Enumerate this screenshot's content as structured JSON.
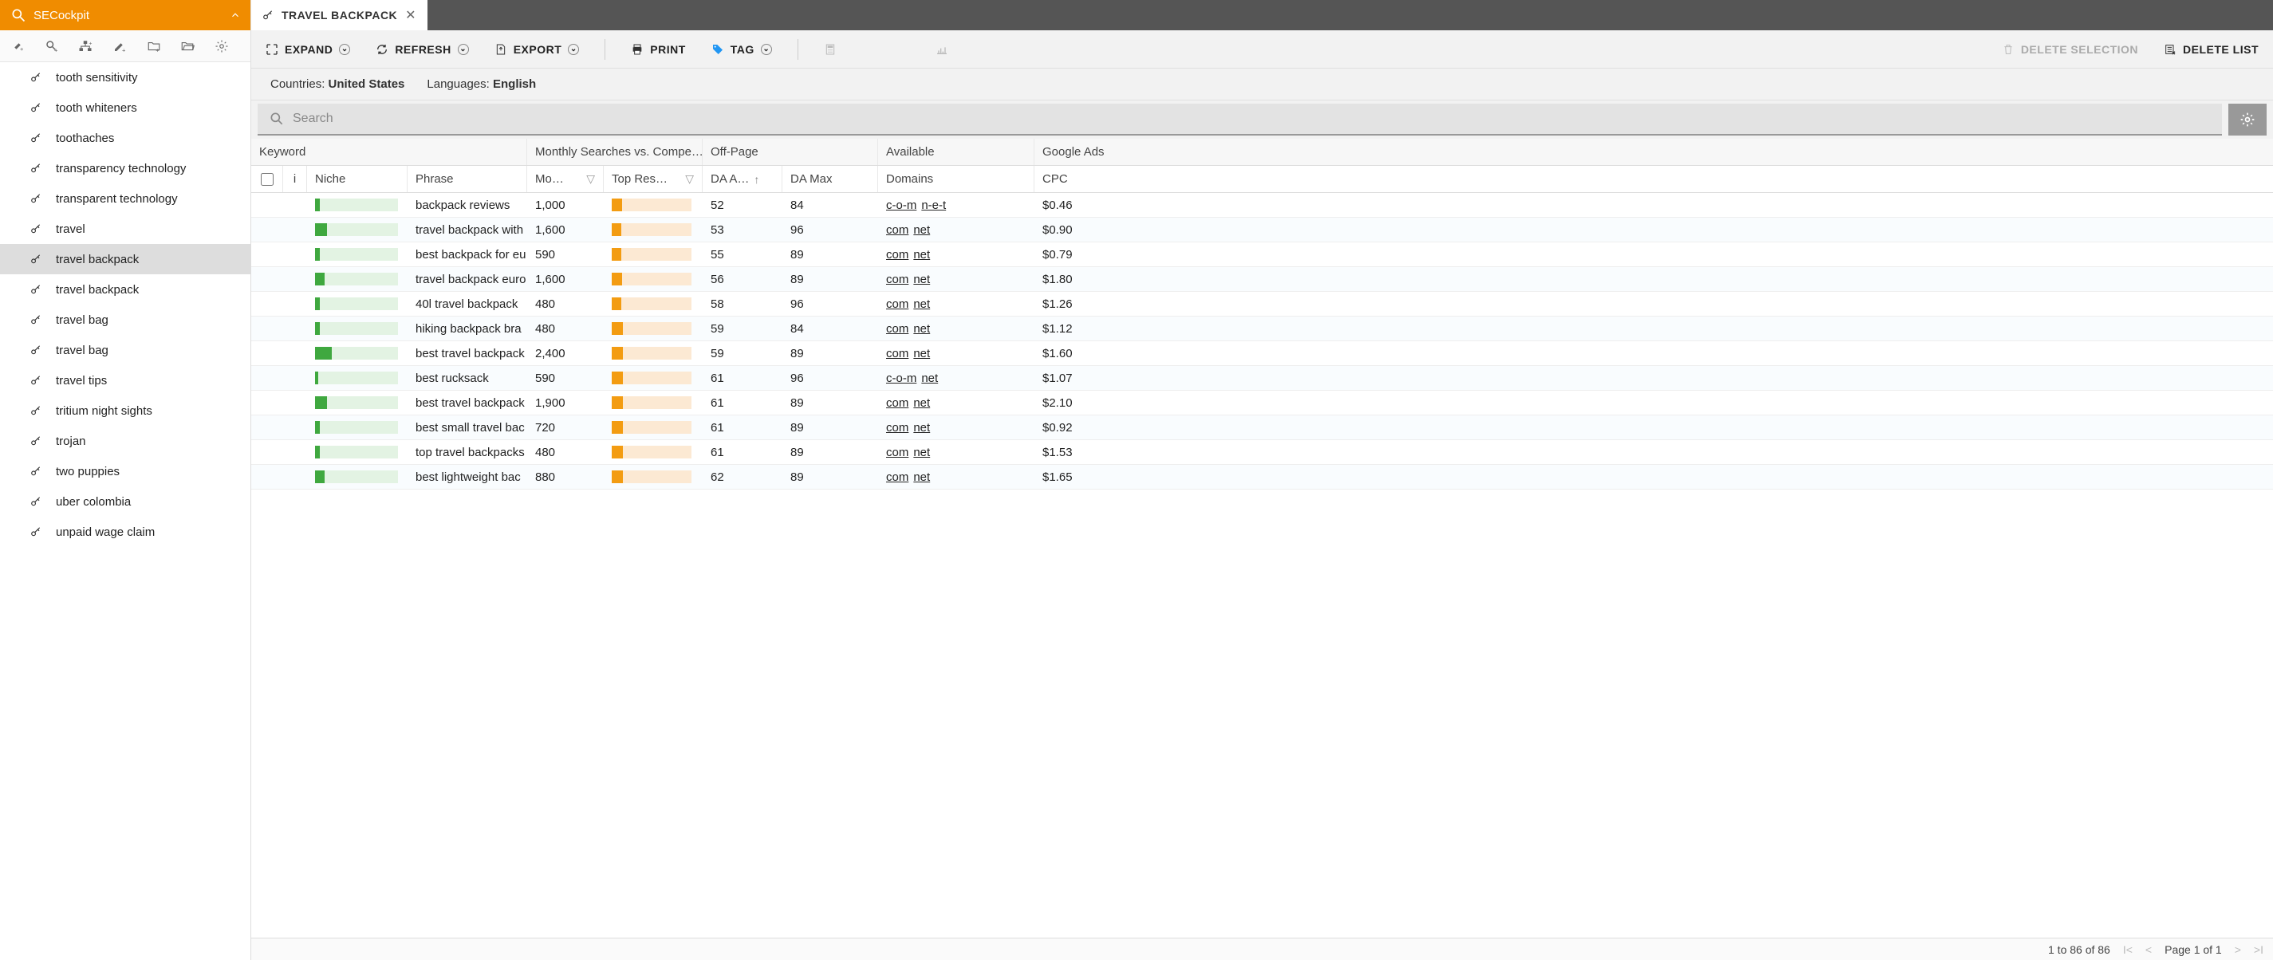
{
  "sidebar": {
    "title": "SECockpit",
    "items": [
      {
        "label": "tooth sensitivity",
        "active": false
      },
      {
        "label": "tooth whiteners",
        "active": false
      },
      {
        "label": "toothaches",
        "active": false
      },
      {
        "label": "transparency technology",
        "active": false
      },
      {
        "label": "transparent technology",
        "active": false
      },
      {
        "label": "travel",
        "active": false
      },
      {
        "label": "travel backpack",
        "active": true
      },
      {
        "label": "travel backpack",
        "active": false
      },
      {
        "label": "travel bag",
        "active": false
      },
      {
        "label": "travel bag",
        "active": false
      },
      {
        "label": "travel tips",
        "active": false
      },
      {
        "label": "tritium night sights",
        "active": false
      },
      {
        "label": "trojan",
        "active": false
      },
      {
        "label": "two puppies",
        "active": false
      },
      {
        "label": "uber colombia",
        "active": false
      },
      {
        "label": "unpaid wage claim",
        "active": false
      }
    ]
  },
  "tab": {
    "title": "TRAVEL BACKPACK"
  },
  "actions": {
    "expand": "EXPAND",
    "refresh": "REFRESH",
    "export": "EXPORT",
    "print": "PRINT",
    "tag": "TAG",
    "delete_selection": "DELETE SELECTION",
    "delete_list": "DELETE LIST"
  },
  "meta": {
    "countries_label": "Countries: ",
    "countries_value": "United States",
    "languages_label": "Languages: ",
    "languages_value": "English"
  },
  "search": {
    "placeholder": "Search"
  },
  "columns": {
    "group_keyword": "Keyword",
    "group_msvc": "Monthly Searches vs. Compe…",
    "group_offpage": "Off-Page",
    "group_available": "Available",
    "group_ga": "Google Ads",
    "i": "i",
    "niche": "Niche",
    "phrase": "Phrase",
    "monthly": "Mo…",
    "topres": "Top Res…",
    "daavg": "DA A…",
    "damax": "DA Max",
    "domains": "Domains",
    "cpc": "CPC"
  },
  "niche_bar": {
    "bg": "#e3f3e3",
    "fill": "#3fa83f"
  },
  "topres_bar": {
    "bg": "#fce9d3",
    "fill": "#f39c12"
  },
  "rows": [
    {
      "niche": 6,
      "phrase": "backpack reviews",
      "monthly": "1,000",
      "topres": 13,
      "daavg": "52",
      "damax": "84",
      "domains": [
        "c-o-m",
        "n-e-t"
      ],
      "cpc": "$0.46"
    },
    {
      "niche": 14,
      "phrase": "travel backpack with",
      "monthly": "1,600",
      "topres": 12,
      "daavg": "53",
      "damax": "96",
      "domains": [
        "com",
        "net"
      ],
      "cpc": "$0.90"
    },
    {
      "niche": 6,
      "phrase": "best backpack for eu",
      "monthly": "590",
      "topres": 12,
      "daavg": "55",
      "damax": "89",
      "domains": [
        "com",
        "net"
      ],
      "cpc": "$0.79"
    },
    {
      "niche": 12,
      "phrase": "travel backpack euro",
      "monthly": "1,600",
      "topres": 13,
      "daavg": "56",
      "damax": "89",
      "domains": [
        "com",
        "net"
      ],
      "cpc": "$1.80"
    },
    {
      "niche": 6,
      "phrase": "40l travel backpack",
      "monthly": "480",
      "topres": 12,
      "daavg": "58",
      "damax": "96",
      "domains": [
        "com",
        "net"
      ],
      "cpc": "$1.26"
    },
    {
      "niche": 6,
      "phrase": "hiking backpack bra",
      "monthly": "480",
      "topres": 14,
      "daavg": "59",
      "damax": "84",
      "domains": [
        "com",
        "net"
      ],
      "cpc": "$1.12"
    },
    {
      "niche": 20,
      "phrase": "best travel backpack",
      "monthly": "2,400",
      "topres": 14,
      "daavg": "59",
      "damax": "89",
      "domains": [
        "com",
        "net"
      ],
      "cpc": "$1.60"
    },
    {
      "niche": 4,
      "phrase": "best rucksack",
      "monthly": "590",
      "topres": 14,
      "daavg": "61",
      "damax": "96",
      "domains": [
        "c-o-m",
        "net"
      ],
      "cpc": "$1.07"
    },
    {
      "niche": 14,
      "phrase": "best travel backpack",
      "monthly": "1,900",
      "topres": 14,
      "daavg": "61",
      "damax": "89",
      "domains": [
        "com",
        "net"
      ],
      "cpc": "$2.10"
    },
    {
      "niche": 6,
      "phrase": "best small travel bac",
      "monthly": "720",
      "topres": 14,
      "daavg": "61",
      "damax": "89",
      "domains": [
        "com",
        "net"
      ],
      "cpc": "$0.92"
    },
    {
      "niche": 6,
      "phrase": "top travel backpacks",
      "monthly": "480",
      "topres": 14,
      "daavg": "61",
      "damax": "89",
      "domains": [
        "com",
        "net"
      ],
      "cpc": "$1.53"
    },
    {
      "niche": 12,
      "phrase": "best lightweight bac",
      "monthly": "880",
      "topres": 14,
      "daavg": "62",
      "damax": "89",
      "domains": [
        "com",
        "net"
      ],
      "cpc": "$1.65"
    }
  ],
  "footer": {
    "range": "1 to 86 of 86",
    "page": "Page 1 of 1"
  }
}
